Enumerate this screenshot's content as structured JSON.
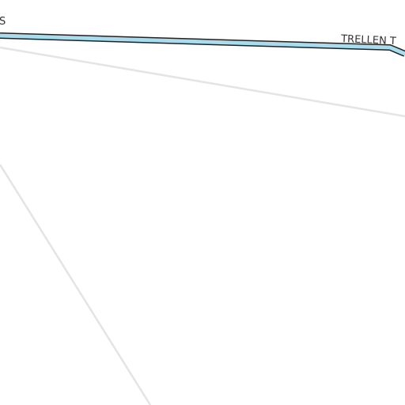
{
  "map": {
    "background_color": "#ffffff",
    "labels": {
      "left_edge": "S",
      "trellen": "TRELLEN T"
    },
    "colors": {
      "highlight_road_fill": "#a8dcee",
      "highlight_road_casing": "#222222",
      "minor_road": "#e4e4e4",
      "label_text": "#333333"
    }
  }
}
